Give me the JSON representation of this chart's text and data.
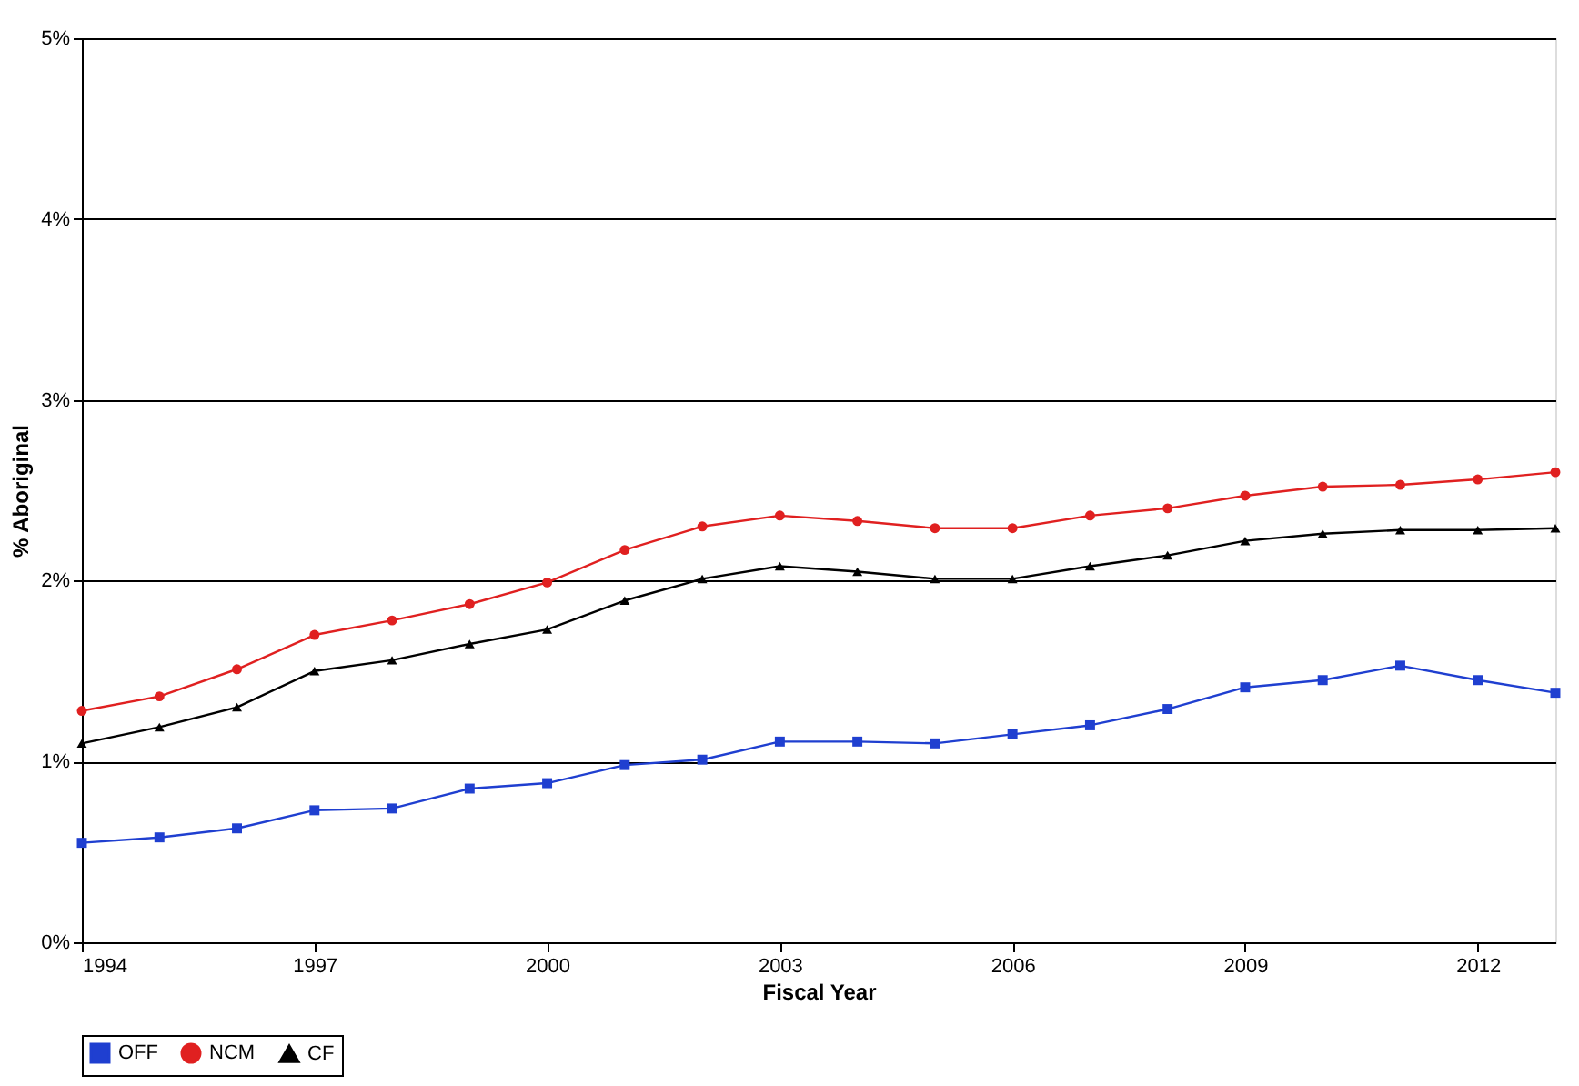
{
  "chart_data": {
    "type": "line",
    "xlabel": "Fiscal Year",
    "ylabel": "% Aboriginal",
    "x": [
      1994,
      1995,
      1996,
      1997,
      1998,
      1999,
      2000,
      2001,
      2002,
      2003,
      2004,
      2005,
      2006,
      2007,
      2008,
      2009,
      2010,
      2011,
      2012,
      2013
    ],
    "series": [
      {
        "name": "OFF",
        "color": "#1f3fd0",
        "marker": "square",
        "values": [
          0.55,
          0.58,
          0.63,
          0.73,
          0.74,
          0.85,
          0.88,
          0.98,
          1.01,
          1.11,
          1.11,
          1.1,
          1.15,
          1.2,
          1.29,
          1.41,
          1.45,
          1.53,
          1.45,
          1.38
        ]
      },
      {
        "name": "NCM",
        "color": "#e02020",
        "marker": "circle",
        "values": [
          1.28,
          1.36,
          1.51,
          1.7,
          1.78,
          1.87,
          1.99,
          2.17,
          2.3,
          2.36,
          2.33,
          2.29,
          2.29,
          2.36,
          2.4,
          2.47,
          2.52,
          2.53,
          2.56,
          2.6
        ]
      },
      {
        "name": "CF",
        "color": "#000000",
        "marker": "triangle",
        "values": [
          1.1,
          1.19,
          1.3,
          1.5,
          1.56,
          1.65,
          1.73,
          1.89,
          2.01,
          2.08,
          2.05,
          2.01,
          2.01,
          2.08,
          2.14,
          2.22,
          2.26,
          2.28,
          2.28,
          2.29
        ]
      }
    ],
    "xlim": [
      1994,
      2013
    ],
    "xticks": [
      1994,
      1997,
      2000,
      2003,
      2006,
      2009,
      2012
    ],
    "ylim": [
      0,
      5
    ],
    "yticks": [
      {
        "value": 0,
        "label": "0%"
      },
      {
        "value": 1,
        "label": "1%"
      },
      {
        "value": 2,
        "label": "2%"
      },
      {
        "value": 3,
        "label": "3%"
      },
      {
        "value": 4,
        "label": "4%"
      },
      {
        "value": 5,
        "label": "5%"
      }
    ],
    "grid": "y",
    "legend": "bottom",
    "line_style": "solid"
  }
}
